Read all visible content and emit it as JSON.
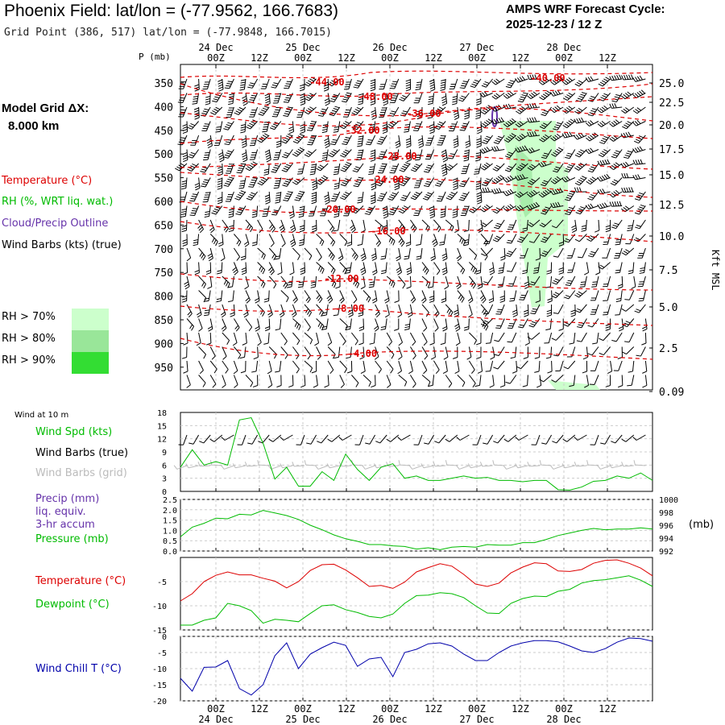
{
  "header": {
    "title": "Phoenix Field:  lat/lon = (-77.9562, 166.7683)",
    "subtitle": "Grid Point (386, 517) lat/lon = (-77.9848, 166.7015)",
    "cycle_line1": "AMPS WRF Forecast Cycle:",
    "cycle_line2": "2025-12-23 / 12  Z"
  },
  "model_grid": {
    "label": "Model Grid ΔX:",
    "value": "8.000 km"
  },
  "legend": {
    "temperature": "Temperature (°C)",
    "rh": "RH (%, WRT liq. wat.)",
    "cloud": "Cloud/Precip Outline",
    "wind": "Wind Barbs (kts) (true)",
    "rh_levels": [
      {
        "label": "RH > 70%",
        "color": "#ccffcc"
      },
      {
        "label": "RH > 80%",
        "color": "#99e699"
      },
      {
        "label": "RH > 90%",
        "color": "#33dd33"
      }
    ]
  },
  "axes": {
    "p_label": "P (mb)",
    "right_label": "Kft MSL",
    "pressure_ticks": [
      "350",
      "400",
      "450",
      "500",
      "550",
      "600",
      "650",
      "700",
      "750",
      "800",
      "850",
      "900",
      "950"
    ],
    "height_ticks": [
      "25.0",
      "22.5",
      "20.0",
      "17.5",
      "15.0",
      "12.5",
      "10.0",
      "7.5",
      "5.0",
      "2.5",
      "0.09"
    ],
    "time_ticks": [
      "00Z",
      "12Z",
      "00Z",
      "12Z",
      "00Z",
      "12Z",
      "00Z",
      "12Z",
      "00Z",
      "12Z"
    ],
    "date_labels": [
      "24 Dec",
      "25 Dec",
      "26 Dec",
      "27 Dec",
      "28 Dec"
    ]
  },
  "panel_labels": {
    "wind10m": "Wind at 10 m",
    "wind_spd": "Wind Spd (kts)",
    "wind_barbs_true": "Wind Barbs (true)",
    "wind_barbs_grid": "Wind Barbs (grid)",
    "precip1": "Precip (mm)",
    "precip2": "liq. equiv.",
    "precip3": "3-hr accum",
    "pressure": "Pressure (mb)",
    "pressure_unit": "(mb)",
    "temp": "Temperature (°C)",
    "dew": "Dewpoint (°C)",
    "chill": "Wind Chill T (°C)"
  },
  "colors": {
    "temp": "#dd0000",
    "green": "#00bb00",
    "purple": "#6633aa",
    "blue": "#0000aa",
    "grey": "#bbbbbb"
  },
  "chart_data": [
    {
      "type": "time-height cross section",
      "y_ticks_left": [
        "350",
        "400",
        "450",
        "500",
        "550",
        "600",
        "650",
        "700",
        "750",
        "800",
        "850",
        "900",
        "950"
      ],
      "y_ticks_right": [
        "25.0",
        "22.5",
        "20.0",
        "17.5",
        "15.0",
        "12.5",
        "10.0",
        "7.5",
        "5.0",
        "2.5",
        "0.09"
      ],
      "isotherm_labels": [
        "-44.00",
        "-48.00",
        "-40.00",
        "-36.00",
        "-32.00",
        "-28.00",
        "-24.00",
        "-20.00",
        "-16.00",
        "-12.00",
        "-8.00",
        "-4.00"
      ]
    },
    {
      "type": "line",
      "name": "wind10m",
      "ylim": [
        0,
        18
      ],
      "y_ticks": [
        "0",
        "3",
        "6",
        "9",
        "12",
        "15",
        "18"
      ],
      "x_hours": [
        0,
        3,
        6,
        9,
        12,
        15,
        18,
        21,
        24,
        27,
        30,
        33,
        36,
        39,
        42,
        45,
        48,
        51,
        54,
        57,
        60,
        63,
        66,
        69,
        72,
        75,
        78,
        81,
        84,
        87,
        90,
        93,
        96,
        99,
        102,
        105,
        108,
        111,
        114,
        117,
        120
      ],
      "series": [
        {
          "name": "Wind Spd (kts)",
          "values": [
            5.5,
            9.5,
            6.0,
            6.8,
            6.0,
            16.3,
            16.8,
            11.0,
            2.8,
            5.5,
            1.2,
            1.2,
            4.5,
            2.5,
            8.5,
            5.0,
            2.5,
            5.5,
            6.3,
            3.0,
            3.5,
            2.5,
            2.5,
            3.0,
            3.5,
            3.0,
            3.2,
            2.5,
            2.5,
            2.2,
            2.5,
            2.5,
            0.4,
            0.3,
            1.0,
            2.3,
            2.5,
            3.5,
            3.0,
            4.2,
            2.5
          ]
        }
      ]
    },
    {
      "type": "line",
      "name": "pressure",
      "y_ticks_left": [
        "0.0",
        "0.5",
        "1.0",
        "1.5",
        "2.0",
        "2.5"
      ],
      "y_ticks_right": [
        "992",
        "994",
        "996",
        "998",
        "1000"
      ],
      "series": [
        {
          "name": "Pressure (mb)",
          "values": [
            994.2,
            995.7,
            996.3,
            997.1,
            997.0,
            997.7,
            997.6,
            998.3,
            997.9,
            997.5,
            996.9,
            996.0,
            995.3,
            994.5,
            993.9,
            993.5,
            993.0,
            993.0,
            992.8,
            992.7,
            992.3,
            992.5,
            992.2,
            992.6,
            992.7,
            992.6,
            993.0,
            992.9,
            992.9,
            993.3,
            993.3,
            993.8,
            994.4,
            994.8,
            995.2,
            995.5,
            995.3,
            995.4,
            995.4,
            995.6,
            995.4
          ]
        },
        {
          "name": "Precip (mm)",
          "values": [
            0,
            0,
            0,
            0,
            0,
            0,
            0,
            0,
            0,
            0,
            0,
            0,
            0,
            0,
            0,
            0,
            0,
            0,
            0,
            0,
            0,
            0,
            0,
            0,
            0,
            0,
            0,
            0,
            0,
            0,
            0,
            0,
            0,
            0,
            0,
            0,
            0,
            0,
            0,
            0,
            0
          ]
        }
      ]
    },
    {
      "type": "line",
      "name": "temperature",
      "y_ticks": [
        "-5",
        "-10",
        "-15"
      ],
      "series": [
        {
          "name": "Temperature (°C)",
          "values": [
            -9.0,
            -7.5,
            -5.0,
            -3.7,
            -3.0,
            -3.6,
            -3.6,
            -4.3,
            -4.9,
            -6.3,
            -5.0,
            -2.7,
            -1.5,
            -1.4,
            -2.6,
            -4.2,
            -6.0,
            -5.8,
            -6.4,
            -5.1,
            -3.0,
            -2.1,
            -1.3,
            -1.8,
            -3.5,
            -5.5,
            -6.0,
            -5.3,
            -3.2,
            -2.0,
            -1.1,
            -1.3,
            -2.8,
            -2.9,
            -2.5,
            -1.2,
            -0.6,
            -0.5,
            -1.2,
            -2.2,
            -3.8
          ]
        },
        {
          "name": "Dewpoint (°C)",
          "values": [
            -14.0,
            -14.0,
            -13.0,
            -12.5,
            -9.5,
            -10.0,
            -11.0,
            -13.6,
            -12.8,
            -13.0,
            -13.3,
            -11.6,
            -10.0,
            -9.8,
            -10.8,
            -11.4,
            -12.2,
            -12.5,
            -11.7,
            -9.5,
            -7.9,
            -7.8,
            -7.3,
            -7.5,
            -8.3,
            -10.0,
            -11.5,
            -11.6,
            -9.5,
            -8.5,
            -8.0,
            -8.1,
            -7.0,
            -6.6,
            -5.3,
            -4.8,
            -4.6,
            -4.2,
            -3.8,
            -4.7,
            -6.0
          ]
        }
      ]
    },
    {
      "type": "line",
      "name": "windchill",
      "y_ticks": [
        "0",
        "-5",
        "-10",
        "-15",
        "-20"
      ],
      "series": [
        {
          "name": "Wind Chill T (°C)",
          "values": [
            -13.0,
            -17.0,
            -9.6,
            -9.5,
            -7.5,
            -16.2,
            -18.2,
            -15.0,
            -6.0,
            -2.0,
            -10.0,
            -5.5,
            -3.5,
            -1.8,
            -2.8,
            -9.3,
            -7.0,
            -6.5,
            -12.5,
            -5.0,
            -4.0,
            -2.3,
            -2.0,
            -3.0,
            -5.5,
            -7.5,
            -7.5,
            -5.0,
            -3.0,
            -2.0,
            -1.3,
            -1.3,
            -1.7,
            -3.0,
            -4.5,
            -5.0,
            -3.8,
            -1.8,
            -0.5,
            -0.7,
            -1.5
          ]
        }
      ]
    }
  ]
}
